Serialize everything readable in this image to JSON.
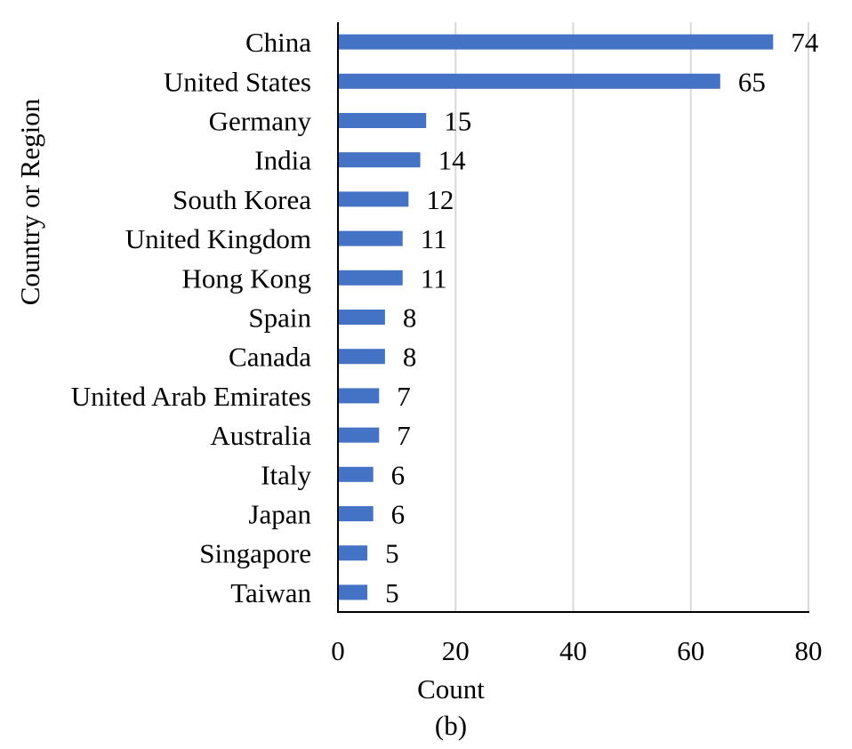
{
  "chart_data": {
    "type": "bar",
    "orientation": "horizontal",
    "categories": [
      "China",
      "United States",
      "Germany",
      "India",
      "South Korea",
      "United Kingdom",
      "Hong Kong",
      "Spain",
      "Canada",
      "United Arab Emirates",
      "Australia",
      "Italy",
      "Japan",
      "Singapore",
      "Taiwan"
    ],
    "values": [
      74,
      65,
      15,
      14,
      12,
      11,
      11,
      8,
      8,
      7,
      7,
      6,
      6,
      5,
      5
    ],
    "title": "",
    "xlabel": "Count",
    "ylabel": "Country or Region",
    "xlim": [
      0,
      80
    ],
    "xticks": [
      "0",
      "20",
      "40",
      "60",
      "80"
    ],
    "grid": "vertical",
    "legend": "none",
    "data_labels": true,
    "bar_color": "#4472c4",
    "caption": "(b)"
  }
}
